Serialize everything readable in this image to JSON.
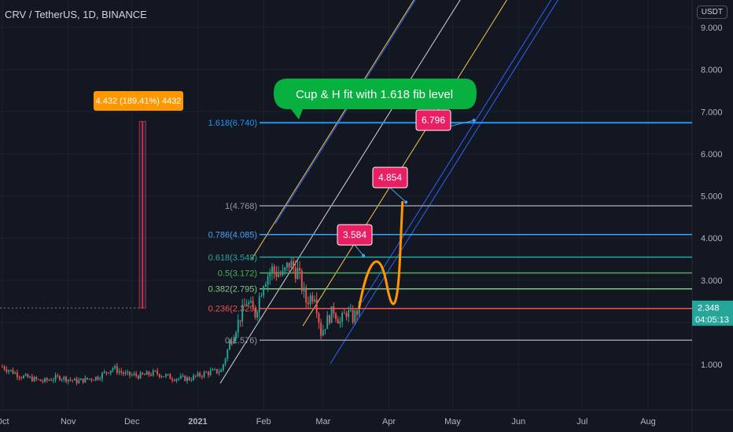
{
  "title": "CRV / TetherUS, 1D, BINANCE",
  "currency": "USDT",
  "colors": {
    "background": "#131722",
    "grid": "#1e222d",
    "axis_text": "#b2b5be",
    "up": "#26a69a",
    "down": "#ef5350",
    "blue": "#2962ff",
    "fib_blue": "#42a5f5",
    "yellow": "#f9c74f",
    "white": "#d1d4dc",
    "orange": "#ff9800",
    "green_bubble": "#08b03f",
    "pink_label": "#e91e63"
  },
  "chart_data": {
    "type": "candlestick",
    "x_labels": [
      "Oct",
      "Nov",
      "Dec",
      "2021",
      "Feb",
      "Mar",
      "Apr",
      "May",
      "Jun",
      "Jul",
      "Aug"
    ],
    "y_ticks": [
      "1.000",
      "2.000",
      "3.000",
      "4.000",
      "5.000",
      "6.000",
      "7.000",
      "8.000",
      "9.000"
    ],
    "y_range": [
      0,
      9.6
    ],
    "fib_levels": [
      {
        "label": "0(1.576)",
        "value": 1.576,
        "color": "#9598a1"
      },
      {
        "label": "0.236(2.329)",
        "value": 2.329,
        "color": "#ef5350"
      },
      {
        "label": "0.382(2.795)",
        "value": 2.795,
        "color": "#81c784"
      },
      {
        "label": "0.5(3.172)",
        "value": 3.172,
        "color": "#4caf50"
      },
      {
        "label": "0.618(3.548)",
        "value": 3.548,
        "color": "#26a69a"
      },
      {
        "label": "0.786(4.085)",
        "value": 4.085,
        "color": "#42a5f5"
      },
      {
        "label": "1(4.768)",
        "value": 4.768,
        "color": "#9598a1"
      },
      {
        "label": "1.618(6.740)",
        "value": 6.74,
        "color": "#2196f3"
      }
    ],
    "targets": [
      {
        "label": "3.584",
        "value": 3.584
      },
      {
        "label": "4.854",
        "value": 4.854
      },
      {
        "label": "6.796",
        "value": 6.796
      }
    ],
    "measure": {
      "label": "4.432 (189.41%) 4432",
      "from": 2.34,
      "to": 6.77
    },
    "annotation": "Cup & H fit  with 1.618  fib level",
    "current_price": {
      "label": "2.348",
      "value": 2.348,
      "countdown": "04:05:13"
    },
    "price_path": [
      [
        "2020-10-01",
        0.95
      ],
      [
        "2020-10-10",
        0.72
      ],
      [
        "2020-10-20",
        0.6
      ],
      [
        "2020-10-28",
        0.7
      ],
      [
        "2020-11-05",
        0.6
      ],
      [
        "2020-11-15",
        0.7
      ],
      [
        "2020-11-22",
        0.92
      ],
      [
        "2020-11-28",
        0.76
      ],
      [
        "2020-12-05",
        0.73
      ],
      [
        "2020-12-12",
        0.8
      ],
      [
        "2020-12-20",
        0.68
      ],
      [
        "2020-12-28",
        0.66
      ],
      [
        "2021-01-05",
        0.8
      ],
      [
        "2021-01-12",
        0.85
      ],
      [
        "2021-01-16",
        1.5
      ],
      [
        "2021-01-20",
        2.0
      ],
      [
        "2021-01-24",
        2.5
      ],
      [
        "2021-01-28",
        2.2
      ],
      [
        "2021-02-01",
        3.0
      ],
      [
        "2021-02-05",
        3.25
      ],
      [
        "2021-02-10",
        3.1
      ],
      [
        "2021-02-13",
        3.4
      ],
      [
        "2021-02-17",
        3.2
      ],
      [
        "2021-02-21",
        2.5
      ],
      [
        "2021-02-25",
        2.7
      ],
      [
        "2021-02-28",
        1.75
      ],
      [
        "2021-03-03",
        2.05
      ],
      [
        "2021-03-06",
        2.3
      ],
      [
        "2021-03-09",
        2.0
      ],
      [
        "2021-03-12",
        2.25
      ],
      [
        "2021-03-15",
        2.1
      ],
      [
        "2021-03-18",
        2.348
      ]
    ]
  }
}
